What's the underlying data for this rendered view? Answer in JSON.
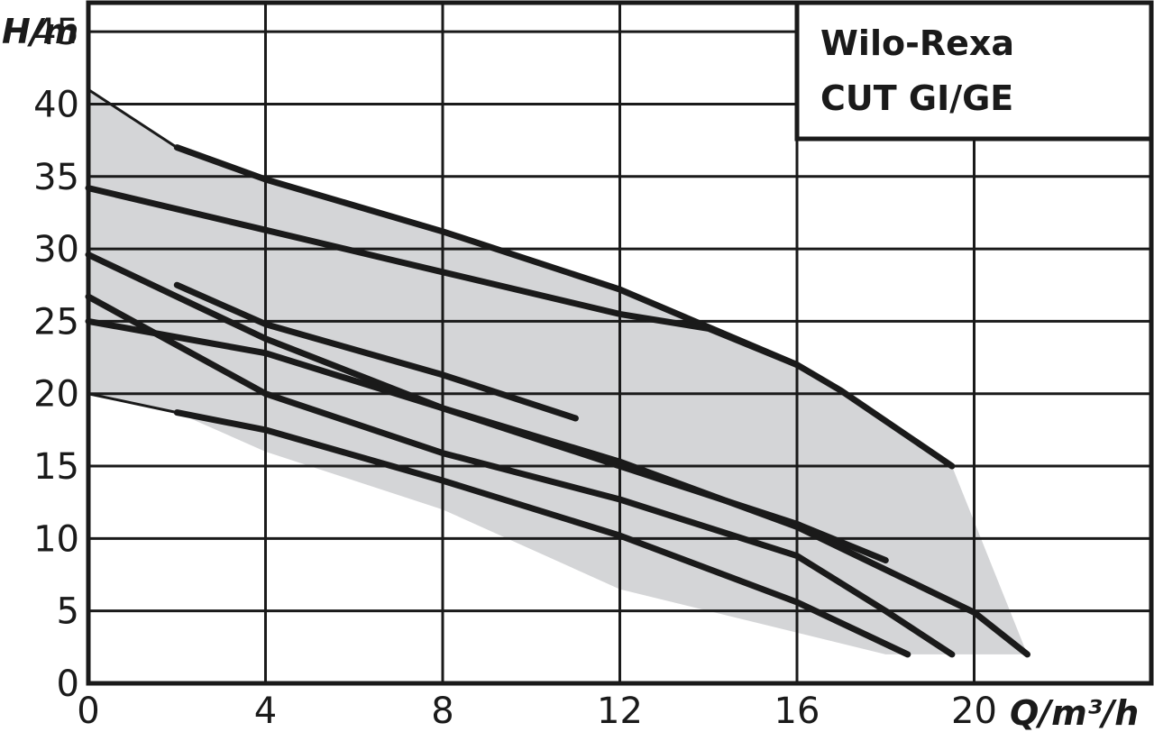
{
  "chart_data": {
    "type": "line",
    "title_lines": [
      "Wilo-Rexa",
      "CUT GI/GE"
    ],
    "xlabel": "Q/m³/h",
    "ylabel": "H/m",
    "xlim": [
      0,
      24
    ],
    "ylim": [
      0,
      47
    ],
    "xticks": [
      0,
      4,
      8,
      12,
      16,
      20
    ],
    "yticks": [
      0,
      5,
      10,
      15,
      20,
      25,
      30,
      35,
      40,
      45
    ],
    "grid": true,
    "colors": {
      "curve": "#1a1a1a",
      "area": "#d4d5d7",
      "grid": "#1a1a1a"
    },
    "operating_area": [
      [
        0,
        41
      ],
      [
        2,
        37
      ],
      [
        4,
        34.8
      ],
      [
        8,
        31.2
      ],
      [
        12,
        27.2
      ],
      [
        16,
        22
      ],
      [
        17,
        20.2
      ],
      [
        19.5,
        15
      ],
      [
        21.2,
        2
      ],
      [
        19.5,
        2
      ],
      [
        18,
        2
      ],
      [
        16,
        3.5
      ],
      [
        12,
        6.5
      ],
      [
        8,
        12
      ],
      [
        4,
        16
      ],
      [
        2,
        18.7
      ],
      [
        0,
        20
      ]
    ],
    "series": [
      {
        "values": [
          [
            2,
            37
          ],
          [
            4,
            34.8
          ],
          [
            8,
            31.2
          ],
          [
            12,
            27.2
          ],
          [
            16,
            22
          ],
          [
            17,
            20.2
          ],
          [
            19.5,
            15
          ]
        ]
      },
      {
        "values": [
          [
            0,
            34.2
          ],
          [
            4,
            31.3
          ],
          [
            8,
            28.4
          ],
          [
            12,
            25.5
          ],
          [
            14,
            24.5
          ],
          [
            16,
            22
          ]
        ]
      },
      {
        "values": [
          [
            2,
            27.5
          ],
          [
            4,
            24.8
          ],
          [
            8,
            21.3
          ],
          [
            11,
            18.3
          ]
        ]
      },
      {
        "values": [
          [
            0,
            29.6
          ],
          [
            4,
            23.8
          ],
          [
            8,
            19
          ],
          [
            12,
            15
          ],
          [
            16,
            11
          ],
          [
            18,
            8.5
          ]
        ]
      },
      {
        "values": [
          [
            0,
            25
          ],
          [
            4,
            22.8
          ],
          [
            8,
            19
          ],
          [
            12,
            15.3
          ],
          [
            16,
            10.8
          ],
          [
            20,
            4.9
          ],
          [
            21.2,
            2
          ]
        ]
      },
      {
        "values": [
          [
            0,
            26.7
          ],
          [
            4,
            20
          ],
          [
            8,
            15.9
          ],
          [
            12,
            12.7
          ],
          [
            16,
            8.8
          ],
          [
            18,
            5
          ],
          [
            19.5,
            2
          ]
        ]
      },
      {
        "values": [
          [
            2,
            18.7
          ],
          [
            4,
            17.5
          ],
          [
            8,
            14
          ],
          [
            12,
            10.2
          ],
          [
            16,
            5.6
          ],
          [
            18.5,
            2
          ]
        ]
      }
    ]
  }
}
